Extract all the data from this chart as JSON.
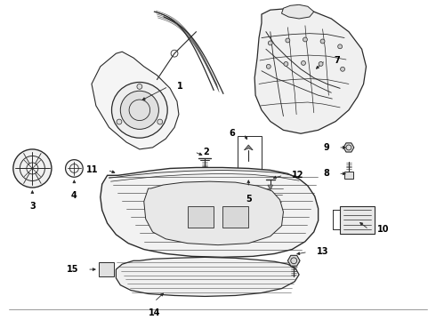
{
  "background_color": "#ffffff",
  "line_color": "#2a2a2a",
  "text_color": "#000000",
  "fig_w": 4.9,
  "fig_h": 3.6,
  "dpi": 100
}
